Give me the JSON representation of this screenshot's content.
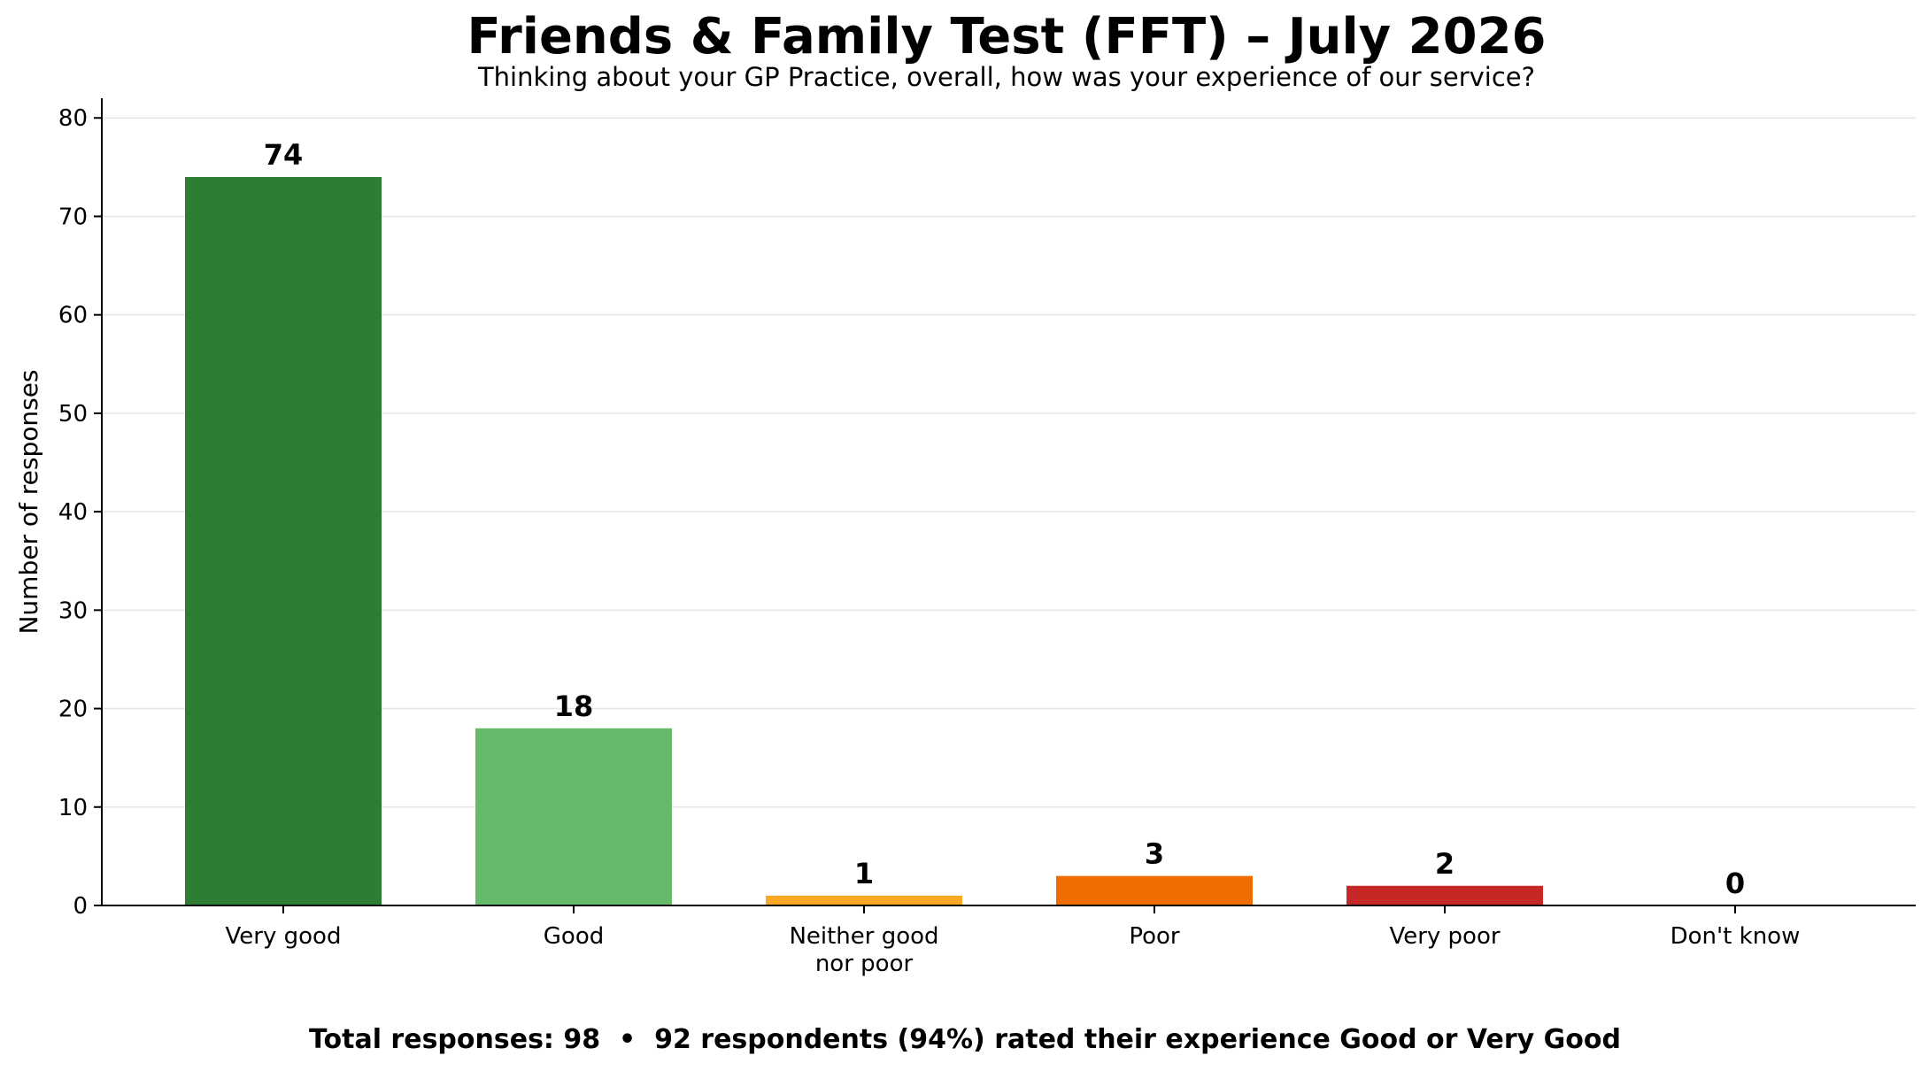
{
  "chart_data": {
    "type": "bar",
    "title": "Friends & Family Test (FFT) – July 2026",
    "subtitle": "Thinking about your GP Practice, overall, how was your experience of our service?",
    "xlabel": "",
    "ylabel": "Number of responses",
    "ylim": [
      0,
      82
    ],
    "yticks": [
      0,
      10,
      20,
      30,
      40,
      50,
      60,
      70,
      80
    ],
    "grid": "horizontal",
    "categories": [
      [
        "Very good"
      ],
      [
        "Good"
      ],
      [
        "Neither good",
        "nor poor"
      ],
      [
        "Poor"
      ],
      [
        "Very poor"
      ],
      [
        "Don't know"
      ]
    ],
    "values": [
      74,
      18,
      1,
      3,
      2,
      0
    ],
    "colors": [
      "#2e7d32",
      "#66bb6a",
      "#f9a825",
      "#ef6c00",
      "#c62828",
      "#9e9e9e"
    ],
    "footer": "Total responses: 98  •  92 respondents (94%) rated their experience Good or Very Good"
  }
}
